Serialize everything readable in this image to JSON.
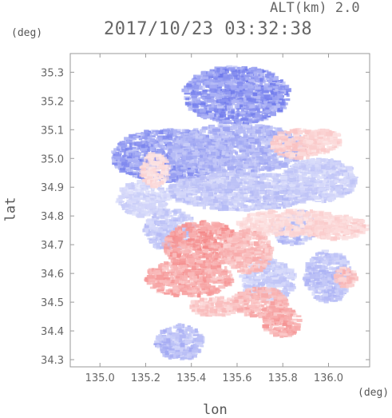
{
  "header": {
    "altitude_label": "ALT(km)  2.0",
    "timestamp": "2017/10/23 03:32:38"
  },
  "chart_data": {
    "type": "heatmap",
    "title": "2017/10/23 03:32:38",
    "xlabel": "lon",
    "ylabel": "lat",
    "x_unit": "(deg)",
    "y_unit": "(deg)",
    "xlim": [
      134.87,
      136.18
    ],
    "ylim": [
      34.275,
      35.365
    ],
    "x_ticks": [
      135.0,
      135.2,
      135.4,
      135.6,
      135.8,
      136.0
    ],
    "x_tick_labels": [
      "135.0",
      "135.2",
      "135.4",
      "135.6",
      "135.8",
      "136.0"
    ],
    "y_ticks": [
      34.3,
      34.4,
      34.5,
      34.6,
      34.7,
      34.8,
      34.9,
      35.0,
      35.1,
      35.2,
      35.3
    ],
    "y_tick_labels": [
      "34.3",
      "34.4",
      "34.5",
      "34.6",
      "34.7",
      "34.8",
      "34.9",
      "35.0",
      "35.1",
      "35.2",
      "35.3"
    ],
    "grid": false,
    "colors": {
      "negative": "#6f78ea",
      "positive": "#f27b7b"
    },
    "regions": [
      {
        "sign": -1,
        "level": 0.85,
        "lon": [
          135.37,
          135.83
        ],
        "lat": [
          35.12,
          35.32
        ]
      },
      {
        "sign": -1,
        "level": 0.8,
        "lon": [
          135.05,
          135.55
        ],
        "lat": [
          34.92,
          35.1
        ]
      },
      {
        "sign": -1,
        "level": 0.6,
        "lon": [
          135.3,
          135.9
        ],
        "lat": [
          34.95,
          35.12
        ]
      },
      {
        "sign": -1,
        "level": 0.45,
        "lon": [
          135.3,
          135.95
        ],
        "lat": [
          34.82,
          34.95
        ]
      },
      {
        "sign": -1,
        "level": 0.4,
        "lon": [
          135.8,
          136.12
        ],
        "lat": [
          34.85,
          35.0
        ]
      },
      {
        "sign": -1,
        "level": 0.35,
        "lon": [
          135.08,
          135.3
        ],
        "lat": [
          34.8,
          34.92
        ]
      },
      {
        "sign": -1,
        "level": 0.55,
        "lon": [
          135.75,
          135.95
        ],
        "lat": [
          34.7,
          34.82
        ]
      },
      {
        "sign": -1,
        "level": 0.5,
        "lon": [
          135.9,
          136.1
        ],
        "lat": [
          34.5,
          34.68
        ]
      },
      {
        "sign": -1,
        "level": 0.45,
        "lon": [
          135.2,
          135.42
        ],
        "lat": [
          34.68,
          34.82
        ]
      },
      {
        "sign": -1,
        "level": 0.4,
        "lon": [
          135.62,
          135.85
        ],
        "lat": [
          34.5,
          34.65
        ]
      },
      {
        "sign": -1,
        "level": 0.55,
        "lon": [
          135.25,
          135.45
        ],
        "lat": [
          34.3,
          34.42
        ]
      },
      {
        "sign": 1,
        "level": 0.3,
        "lon": [
          135.6,
          136.08
        ],
        "lat": [
          34.73,
          34.82
        ]
      },
      {
        "sign": 1,
        "level": 0.35,
        "lon": [
          135.9,
          136.17
        ],
        "lat": [
          34.72,
          34.8
        ]
      },
      {
        "sign": 1,
        "level": 0.4,
        "lon": [
          135.75,
          135.98
        ],
        "lat": [
          35.0,
          35.1
        ]
      },
      {
        "sign": 1,
        "level": 0.3,
        "lon": [
          135.18,
          135.3
        ],
        "lat": [
          34.9,
          35.02
        ]
      },
      {
        "sign": 1,
        "level": 0.75,
        "lon": [
          135.28,
          135.62
        ],
        "lat": [
          34.62,
          34.78
        ]
      },
      {
        "sign": 1,
        "level": 0.7,
        "lon": [
          135.2,
          135.58
        ],
        "lat": [
          34.52,
          34.65
        ]
      },
      {
        "sign": 1,
        "level": 0.55,
        "lon": [
          135.55,
          135.75
        ],
        "lat": [
          34.6,
          34.75
        ]
      },
      {
        "sign": 1,
        "level": 0.6,
        "lon": [
          135.58,
          135.82
        ],
        "lat": [
          34.45,
          34.55
        ]
      },
      {
        "sign": 1,
        "level": 0.7,
        "lon": [
          135.72,
          135.88
        ],
        "lat": [
          34.38,
          34.48
        ]
      },
      {
        "sign": 1,
        "level": 0.45,
        "lon": [
          135.4,
          135.6
        ],
        "lat": [
          34.45,
          34.52
        ]
      },
      {
        "sign": 1,
        "level": 0.35,
        "lon": [
          135.9,
          136.05
        ],
        "lat": [
          35.02,
          35.1
        ]
      },
      {
        "sign": 1,
        "level": 0.5,
        "lon": [
          136.03,
          136.12
        ],
        "lat": [
          34.55,
          34.62
        ]
      }
    ]
  }
}
